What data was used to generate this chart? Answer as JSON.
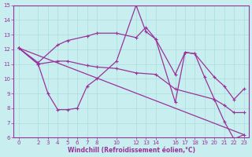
{
  "xlabel": "Windchill (Refroidissement éolien,°C)",
  "bg_color": "#c8eef0",
  "line_color": "#993399",
  "grid_color": "#aadddd",
  "xlim": [
    -0.5,
    23.5
  ],
  "ylim": [
    6,
    15
  ],
  "yticks": [
    6,
    7,
    8,
    9,
    10,
    11,
    12,
    13,
    14,
    15
  ],
  "xticks": [
    0,
    2,
    3,
    4,
    5,
    6,
    7,
    8,
    10,
    12,
    13,
    14,
    16,
    17,
    18,
    19,
    20,
    21,
    22,
    23
  ],
  "line1_x": [
    0,
    2,
    3,
    4,
    5,
    6,
    7,
    8,
    10,
    12,
    13,
    14,
    16,
    17,
    18,
    19,
    20,
    21,
    22,
    23
  ],
  "line1_y": [
    12.1,
    11.0,
    9.0,
    7.9,
    7.9,
    8.0,
    9.5,
    10.0,
    11.2,
    15.0,
    13.2,
    12.7,
    8.4,
    11.8,
    11.7,
    10.1,
    8.6,
    7.1,
    5.9,
    6.2
  ],
  "line2_x": [
    0,
    23
  ],
  "line2_y": [
    12.1,
    6.2
  ],
  "line3_x": [
    0,
    2,
    4,
    5,
    7,
    8,
    10,
    12,
    13,
    14,
    16,
    17,
    18,
    20,
    21,
    22,
    23
  ],
  "line3_y": [
    12.1,
    11.1,
    12.3,
    12.6,
    12.9,
    13.1,
    13.1,
    12.8,
    13.5,
    12.7,
    10.3,
    11.8,
    11.7,
    10.1,
    9.5,
    8.6,
    9.3
  ],
  "line4_x": [
    0,
    2,
    4,
    5,
    7,
    8,
    10,
    12,
    14,
    16,
    20,
    21,
    22,
    23
  ],
  "line4_y": [
    12.1,
    11.0,
    11.2,
    11.2,
    10.9,
    10.8,
    10.7,
    10.4,
    10.3,
    9.3,
    8.6,
    8.2,
    7.7,
    7.7
  ]
}
